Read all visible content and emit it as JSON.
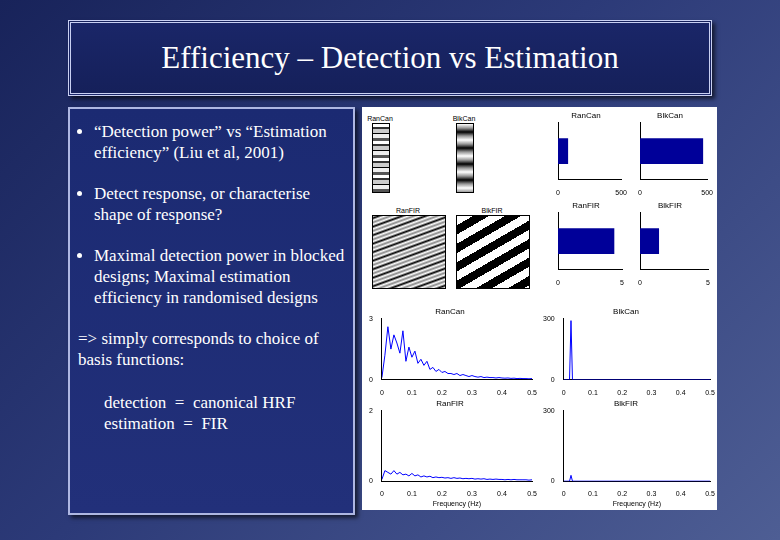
{
  "slide": {
    "title": "Efficiency – Detection vs Estimation",
    "bullets": [
      "“Detection power” vs “Estimation efficiency” (Liu et al, 2001)",
      "Detect response, or characterise shape of response?",
      "Maximal detection power in blocked designs; Maximal estimation efficiency in randomised designs"
    ],
    "conclusion": "=> simply corresponds to choice of basis functions:",
    "definitions": [
      "detection  =  canonical HRF",
      "estimation  =  FIR"
    ]
  },
  "design_matrices": [
    {
      "title": "RanCan"
    },
    {
      "title": "BlkCan"
    },
    {
      "title": "RanFIR"
    },
    {
      "title": "BlkFIR"
    }
  ],
  "chart_data": [
    {
      "type": "bar",
      "orientation": "horizontal",
      "title": "RanCan",
      "categories": [
        null
      ],
      "values": [
        80
      ],
      "xlim": [
        0,
        500
      ],
      "xticks": [
        0,
        500
      ],
      "color": "#000099",
      "tick_labels": "x"
    },
    {
      "type": "bar",
      "orientation": "horizontal",
      "title": "BlkCan",
      "categories": [
        null
      ],
      "values": [
        470
      ],
      "xlim": [
        0,
        500
      ],
      "xticks": [
        0,
        500
      ],
      "color": "#000099",
      "tick_labels": "x"
    },
    {
      "type": "bar",
      "orientation": "horizontal",
      "title": "RanFIR",
      "categories": [
        null
      ],
      "values": [
        4.4
      ],
      "xlim": [
        0,
        5
      ],
      "xticks": [
        0,
        5
      ],
      "color": "#000099",
      "tick_labels": "x"
    },
    {
      "type": "bar",
      "orientation": "horizontal",
      "title": "BlkFIR",
      "categories": [
        null
      ],
      "values": [
        1.4
      ],
      "xlim": [
        0,
        5
      ],
      "xticks": [
        0,
        5
      ],
      "color": "#000099",
      "tick_labels": "x"
    },
    {
      "type": "line",
      "title": "RanCan",
      "x": [
        0,
        0.01,
        0.02,
        0.03,
        0.04,
        0.05,
        0.06,
        0.07,
        0.08,
        0.09,
        0.1,
        0.11,
        0.12,
        0.13,
        0.14,
        0.15,
        0.16,
        0.17,
        0.18,
        0.19,
        0.2,
        0.21,
        0.22,
        0.23,
        0.24,
        0.25,
        0.26,
        0.27,
        0.28,
        0.29,
        0.3,
        0.31,
        0.32,
        0.33,
        0.34,
        0.35,
        0.36,
        0.37,
        0.38,
        0.39,
        0.4,
        0.41,
        0.42,
        0.43,
        0.44,
        0.45,
        0.46,
        0.47,
        0.48,
        0.49,
        0.5
      ],
      "values": [
        0.1,
        1.2,
        2.6,
        1.5,
        2.2,
        1.8,
        1.3,
        2.4,
        0.9,
        1.6,
        1.1,
        1.4,
        0.8,
        1.0,
        0.7,
        0.9,
        0.5,
        0.6,
        0.4,
        0.5,
        0.35,
        0.4,
        0.3,
        0.3,
        0.25,
        0.3,
        0.2,
        0.25,
        0.2,
        0.15,
        0.2,
        0.15,
        0.12,
        0.15,
        0.1,
        0.12,
        0.1,
        0.1,
        0.08,
        0.1,
        0.08,
        0.07,
        0.08,
        0.06,
        0.07,
        0.05,
        0.06,
        0.05,
        0.05,
        0.04,
        0.05
      ],
      "xlim": [
        0,
        0.5
      ],
      "xticks": [
        0,
        0.1,
        0.2,
        0.3,
        0.4,
        0.5
      ],
      "ylim": [
        0,
        3
      ],
      "yticks": [
        0,
        3
      ],
      "color": "#0000ff"
    },
    {
      "type": "line",
      "title": "BlkCan",
      "x": [
        0,
        0.02,
        0.025,
        0.03,
        0.5
      ],
      "values": [
        0,
        0,
        290,
        0,
        0
      ],
      "xlim": [
        0,
        0.5
      ],
      "xticks": [
        0,
        0.1,
        0.2,
        0.3,
        0.4,
        0.5
      ],
      "ylim": [
        0,
        300
      ],
      "yticks": [
        0,
        300
      ],
      "color": "#0000ff"
    },
    {
      "type": "line",
      "title": "RanFIR",
      "x_label": "Frequency (Hz)",
      "x": [
        0,
        0.01,
        0.02,
        0.03,
        0.04,
        0.05,
        0.06,
        0.07,
        0.08,
        0.09,
        0.1,
        0.11,
        0.12,
        0.13,
        0.14,
        0.15,
        0.16,
        0.17,
        0.18,
        0.19,
        0.2,
        0.21,
        0.22,
        0.23,
        0.24,
        0.25,
        0.26,
        0.27,
        0.28,
        0.29,
        0.3,
        0.31,
        0.32,
        0.33,
        0.34,
        0.35,
        0.36,
        0.37,
        0.38,
        0.39,
        0.4,
        0.41,
        0.42,
        0.43,
        0.44,
        0.45,
        0.46,
        0.47,
        0.48,
        0.49,
        0.5
      ],
      "values": [
        0.05,
        0.3,
        0.25,
        0.2,
        0.3,
        0.2,
        0.25,
        0.18,
        0.2,
        0.15,
        0.22,
        0.15,
        0.18,
        0.12,
        0.15,
        0.12,
        0.14,
        0.1,
        0.12,
        0.1,
        0.11,
        0.09,
        0.1,
        0.08,
        0.1,
        0.08,
        0.09,
        0.07,
        0.08,
        0.07,
        0.08,
        0.06,
        0.07,
        0.06,
        0.07,
        0.05,
        0.06,
        0.05,
        0.06,
        0.05,
        0.05,
        0.04,
        0.05,
        0.04,
        0.05,
        0.04,
        0.04,
        0.04,
        0.04,
        0.03,
        0.04
      ],
      "xlim": [
        0,
        0.5
      ],
      "xticks": [
        0,
        0.1,
        0.2,
        0.3,
        0.4,
        0.5
      ],
      "ylim": [
        0,
        2
      ],
      "yticks": [
        0,
        2
      ],
      "color": "#0000ff"
    },
    {
      "type": "line",
      "title": "BlkFIR",
      "x_label": "Frequency (Hz)",
      "x": [
        0,
        0.02,
        0.025,
        0.03,
        0.5
      ],
      "values": [
        0,
        0,
        25,
        0,
        0
      ],
      "xlim": [
        0,
        0.5
      ],
      "xticks": [
        0,
        0.1,
        0.2,
        0.3,
        0.4,
        0.5
      ],
      "ylim": [
        0,
        300
      ],
      "yticks": [
        0,
        300
      ],
      "color": "#0000ff"
    }
  ]
}
